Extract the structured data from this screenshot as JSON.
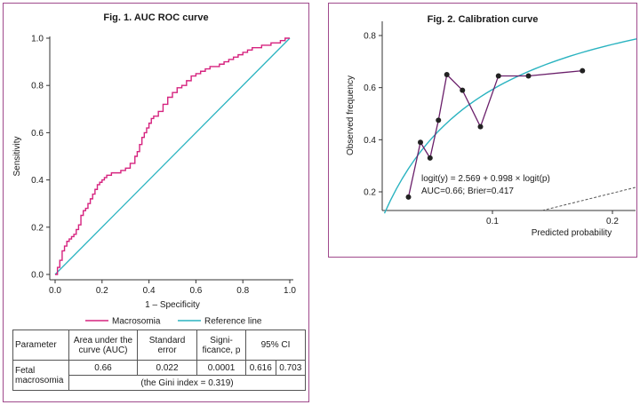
{
  "fig1": {
    "title": "Fig. 1. AUC ROC curve",
    "chart_data": {
      "type": "line",
      "xlabel": "1 – Specificity",
      "ylabel": "Sensitivity",
      "xlim": [
        0,
        1
      ],
      "ylim": [
        0,
        1
      ],
      "xticks": [
        "0.0",
        "0.2",
        "0.4",
        "0.6",
        "0.8",
        "1.0"
      ],
      "yticks": [
        "0.0",
        "0.2",
        "0.4",
        "0.6",
        "0.8",
        "1.0"
      ],
      "legend_position": "bottom",
      "series": [
        {
          "name": "Macrosomia",
          "color": "#d6237f",
          "x": [
            0.0,
            0.01,
            0.02,
            0.03,
            0.04,
            0.05,
            0.06,
            0.07,
            0.08,
            0.09,
            0.1,
            0.11,
            0.12,
            0.13,
            0.14,
            0.15,
            0.16,
            0.17,
            0.18,
            0.19,
            0.2,
            0.21,
            0.22,
            0.24,
            0.26,
            0.28,
            0.3,
            0.32,
            0.34,
            0.35,
            0.36,
            0.37,
            0.38,
            0.39,
            0.4,
            0.41,
            0.42,
            0.44,
            0.46,
            0.48,
            0.5,
            0.52,
            0.54,
            0.56,
            0.58,
            0.6,
            0.62,
            0.64,
            0.66,
            0.68,
            0.7,
            0.72,
            0.74,
            0.76,
            0.78,
            0.8,
            0.82,
            0.84,
            0.86,
            0.88,
            0.9,
            0.92,
            0.94,
            0.96,
            0.98,
            1.0
          ],
          "y": [
            0.0,
            0.03,
            0.06,
            0.1,
            0.12,
            0.14,
            0.15,
            0.16,
            0.17,
            0.19,
            0.21,
            0.25,
            0.27,
            0.28,
            0.3,
            0.32,
            0.34,
            0.36,
            0.38,
            0.39,
            0.4,
            0.41,
            0.42,
            0.43,
            0.43,
            0.44,
            0.45,
            0.47,
            0.5,
            0.52,
            0.55,
            0.58,
            0.6,
            0.62,
            0.64,
            0.66,
            0.67,
            0.69,
            0.72,
            0.75,
            0.77,
            0.79,
            0.8,
            0.82,
            0.84,
            0.85,
            0.86,
            0.87,
            0.88,
            0.88,
            0.89,
            0.9,
            0.91,
            0.92,
            0.93,
            0.94,
            0.95,
            0.96,
            0.96,
            0.97,
            0.97,
            0.98,
            0.98,
            0.99,
            1.0,
            1.0
          ]
        },
        {
          "name": "Reference line",
          "color": "#2ab3c0",
          "x": [
            0,
            1
          ],
          "y": [
            0,
            1
          ]
        }
      ]
    },
    "table": {
      "headers": [
        "Parameter",
        "Area under the curve (AUC)",
        "Standard error",
        "Signi- ficance, p",
        "95% CI"
      ],
      "row_label": "Fetal macrosomia",
      "values": [
        "0.66",
        "0.022",
        "0.0001",
        "0.616",
        "0.703"
      ],
      "note": "(the Gini index = 0.319)"
    }
  },
  "fig2": {
    "title": "Fig. 2. Calibration curve",
    "chart_data": {
      "type": "scatter",
      "xlabel": "Predicted probability",
      "ylabel": "Observed frequency",
      "xticks": [
        "0.1",
        "0.2"
      ],
      "yticks": [
        "0.2",
        "0.4",
        "0.6",
        "0.8"
      ],
      "grid": false,
      "points": {
        "color": "#6a1f6a",
        "x": [
          0.03,
          0.04,
          0.048,
          0.055,
          0.062,
          0.075,
          0.09,
          0.105,
          0.13,
          0.175
        ],
        "y": [
          0.18,
          0.39,
          0.33,
          0.475,
          0.65,
          0.59,
          0.45,
          0.645,
          0.645,
          0.665
        ]
      },
      "fit_line": {
        "color": "#2ab3c0",
        "equation": "logit(y) = 2.569 + 0.998 × logit(p)",
        "stats": "AUC=0.66; Brier=0.417"
      }
    }
  }
}
